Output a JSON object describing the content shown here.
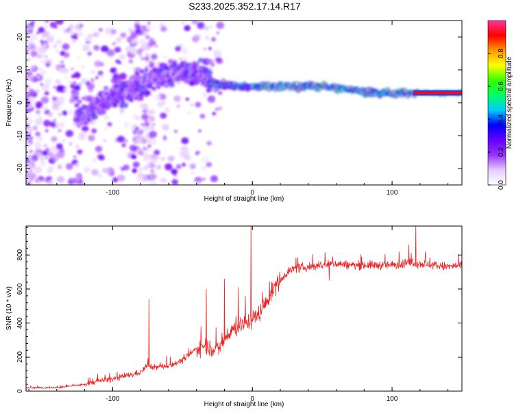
{
  "title": "S233.2025.352.17.14.R17",
  "chart_data": [
    {
      "type": "heatmap",
      "xlabel": "Height of straight line (km)",
      "ylabel": "Frequency (Hz)",
      "xlim": [
        -162,
        150
      ],
      "ylim": [
        -25,
        25
      ],
      "xticks": [
        -100,
        0,
        100
      ],
      "yticks": [
        -20,
        -10,
        0,
        10,
        20
      ],
      "colorbar": {
        "label": "Normalized spectral amplitude",
        "range": [
          0.0,
          1.0
        ],
        "ticks": [
          "0.0",
          "0.2",
          "0.4",
          "0.6",
          "0.8"
        ],
        "colors": [
          "#ffffff",
          "#e6ccff",
          "#9933ff",
          "#6600ff",
          "#0000ff",
          "#00ccff",
          "#00ff66",
          "#33ff00",
          "#ffff00",
          "#ff9900",
          "#ff0000",
          "#ff3399"
        ]
      },
      "ridge": [
        {
          "x": -125,
          "y": -5
        },
        {
          "x": -115,
          "y": -2
        },
        {
          "x": -100,
          "y": 2
        },
        {
          "x": -85,
          "y": 4
        },
        {
          "x": -70,
          "y": 8
        },
        {
          "x": -55,
          "y": 9
        },
        {
          "x": -40,
          "y": 10
        },
        {
          "x": -30,
          "y": 6
        },
        {
          "x": -15,
          "y": 5
        },
        {
          "x": 0,
          "y": 5
        },
        {
          "x": 20,
          "y": 5
        },
        {
          "x": 50,
          "y": 5
        },
        {
          "x": 70,
          "y": 4
        },
        {
          "x": 90,
          "y": 3
        },
        {
          "x": 110,
          "y": 3
        },
        {
          "x": 150,
          "y": 3
        }
      ]
    },
    {
      "type": "line",
      "xlabel": "Height of straight line (km)",
      "ylabel": "SNR (10 * v/v)",
      "xlim": [
        -162,
        150
      ],
      "ylim": [
        0,
        970
      ],
      "xticks": [
        -100,
        0,
        100
      ],
      "yticks": [
        0,
        200,
        400,
        600,
        800
      ],
      "color": "#ee2222",
      "points": [
        [
          -162,
          20
        ],
        [
          -140,
          20
        ],
        [
          -130,
          30
        ],
        [
          -120,
          40
        ],
        [
          -110,
          60
        ],
        [
          -100,
          70
        ],
        [
          -90,
          90
        ],
        [
          -80,
          110
        ],
        [
          -75,
          150
        ],
        [
          -70,
          140
        ],
        [
          -60,
          150
        ],
        [
          -50,
          180
        ],
        [
          -40,
          250
        ],
        [
          -35,
          270
        ],
        [
          -30,
          260
        ],
        [
          -25,
          240
        ],
        [
          -20,
          300
        ],
        [
          -15,
          360
        ],
        [
          -10,
          380
        ],
        [
          -5,
          400
        ],
        [
          0,
          420
        ],
        [
          5,
          460
        ],
        [
          10,
          520
        ],
        [
          15,
          600
        ],
        [
          20,
          650
        ],
        [
          25,
          700
        ],
        [
          30,
          720
        ],
        [
          40,
          730
        ],
        [
          50,
          740
        ],
        [
          60,
          750
        ],
        [
          70,
          740
        ],
        [
          80,
          740
        ],
        [
          90,
          740
        ],
        [
          100,
          740
        ],
        [
          110,
          750
        ],
        [
          120,
          750
        ],
        [
          130,
          740
        ],
        [
          140,
          730
        ],
        [
          150,
          740
        ]
      ],
      "spikes": [
        [
          -74,
          540
        ],
        [
          -33,
          600
        ],
        [
          -20,
          660
        ],
        [
          -10,
          610
        ],
        [
          -5,
          560
        ],
        [
          -1,
          970
        ],
        [
          55,
          650
        ],
        [
          105,
          820
        ],
        [
          112,
          860
        ],
        [
          117,
          970
        ]
      ]
    }
  ]
}
